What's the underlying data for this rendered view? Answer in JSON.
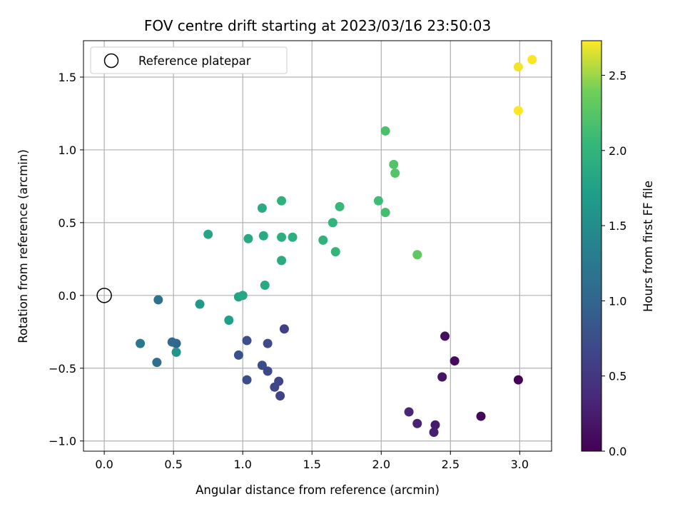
{
  "chart_data": {
    "type": "scatter",
    "title": "FOV centre drift starting at 2023/03/16 23:50:03",
    "xlabel": "Angular distance from reference (arcmin)",
    "ylabel": "Rotation from reference (arcmin)",
    "xlim": [
      -0.15,
      3.23
    ],
    "ylim": [
      -1.07,
      1.75
    ],
    "xticks": [
      0.0,
      0.5,
      1.0,
      1.5,
      2.0,
      2.5,
      3.0
    ],
    "yticks": [
      -1.0,
      -0.5,
      0.0,
      0.5,
      1.0,
      1.5
    ],
    "xtick_labels": [
      "0.0",
      "0.5",
      "1.0",
      "1.5",
      "2.0",
      "2.5",
      "3.0"
    ],
    "ytick_labels": [
      "−1.0",
      "−0.5",
      "0.0",
      "0.5",
      "1.0",
      "1.5"
    ],
    "grid": true,
    "legend": {
      "placement": "top-left",
      "entries": [
        {
          "label": "Reference platepar",
          "marker": "open-circle"
        }
      ]
    },
    "reference_point": {
      "x": 0.0,
      "y": 0.0
    },
    "colorbar": {
      "label": "Hours from first FF file",
      "range": [
        0.0,
        2.73
      ],
      "ticks": [
        0.0,
        0.5,
        1.0,
        1.5,
        2.0,
        2.5
      ],
      "tick_labels": [
        "0.0",
        "0.5",
        "1.0",
        "1.5",
        "2.0",
        "2.5"
      ],
      "colormap": "viridis"
    },
    "points": [
      {
        "x": 2.99,
        "y": -0.58,
        "c": 0.02
      },
      {
        "x": 2.72,
        "y": -0.83,
        "c": 0.05
      },
      {
        "x": 2.53,
        "y": -0.45,
        "c": 0.08
      },
      {
        "x": 2.46,
        "y": -0.28,
        "c": 0.12
      },
      {
        "x": 2.44,
        "y": -0.56,
        "c": 0.17
      },
      {
        "x": 2.39,
        "y": -0.89,
        "c": 0.22
      },
      {
        "x": 2.38,
        "y": -0.94,
        "c": 0.26
      },
      {
        "x": 2.26,
        "y": -0.88,
        "c": 0.3
      },
      {
        "x": 2.2,
        "y": -0.8,
        "c": 0.33
      },
      {
        "x": 1.3,
        "y": -0.23,
        "c": 0.6
      },
      {
        "x": 1.27,
        "y": -0.69,
        "c": 0.62
      },
      {
        "x": 1.26,
        "y": -0.59,
        "c": 0.64
      },
      {
        "x": 1.23,
        "y": -0.63,
        "c": 0.66
      },
      {
        "x": 1.18,
        "y": -0.52,
        "c": 0.68
      },
      {
        "x": 1.18,
        "y": -0.33,
        "c": 0.7
      },
      {
        "x": 1.14,
        "y": -0.48,
        "c": 0.72
      },
      {
        "x": 1.03,
        "y": -0.58,
        "c": 0.74
      },
      {
        "x": 1.03,
        "y": -0.31,
        "c": 0.76
      },
      {
        "x": 0.97,
        "y": -0.41,
        "c": 0.78
      },
      {
        "x": 0.52,
        "y": -0.33,
        "c": 1.0
      },
      {
        "x": 0.49,
        "y": -0.32,
        "c": 1.05
      },
      {
        "x": 0.38,
        "y": -0.46,
        "c": 1.1
      },
      {
        "x": 0.39,
        "y": -0.03,
        "c": 1.15
      },
      {
        "x": 0.26,
        "y": -0.33,
        "c": 1.22
      },
      {
        "x": 0.52,
        "y": -0.39,
        "c": 1.58
      },
      {
        "x": 0.69,
        "y": -0.06,
        "c": 1.65
      },
      {
        "x": 0.9,
        "y": -0.17,
        "c": 1.72
      },
      {
        "x": 0.97,
        "y": -0.01,
        "c": 1.78
      },
      {
        "x": 1.0,
        "y": 0.0,
        "c": 1.82
      },
      {
        "x": 1.16,
        "y": 0.07,
        "c": 1.86
      },
      {
        "x": 1.28,
        "y": 0.24,
        "c": 1.88
      },
      {
        "x": 0.75,
        "y": 0.42,
        "c": 1.8
      },
      {
        "x": 1.04,
        "y": 0.39,
        "c": 1.84
      },
      {
        "x": 1.15,
        "y": 0.41,
        "c": 1.87
      },
      {
        "x": 1.14,
        "y": 0.6,
        "c": 1.9
      },
      {
        "x": 1.28,
        "y": 0.4,
        "c": 1.92
      },
      {
        "x": 1.36,
        "y": 0.4,
        "c": 1.94
      },
      {
        "x": 1.28,
        "y": 0.65,
        "c": 1.96
      },
      {
        "x": 1.58,
        "y": 0.38,
        "c": 1.98
      },
      {
        "x": 1.65,
        "y": 0.5,
        "c": 2.0
      },
      {
        "x": 1.67,
        "y": 0.3,
        "c": 2.02
      },
      {
        "x": 1.7,
        "y": 0.61,
        "c": 2.06
      },
      {
        "x": 1.98,
        "y": 0.65,
        "c": 2.1
      },
      {
        "x": 2.03,
        "y": 0.57,
        "c": 2.14
      },
      {
        "x": 2.03,
        "y": 1.13,
        "c": 2.18
      },
      {
        "x": 2.09,
        "y": 0.9,
        "c": 2.22
      },
      {
        "x": 2.1,
        "y": 0.84,
        "c": 2.24
      },
      {
        "x": 2.26,
        "y": 0.28,
        "c": 2.3
      },
      {
        "x": 2.99,
        "y": 1.57,
        "c": 2.7
      },
      {
        "x": 3.09,
        "y": 1.62,
        "c": 2.72
      },
      {
        "x": 2.99,
        "y": 1.27,
        "c": 2.73
      }
    ]
  }
}
